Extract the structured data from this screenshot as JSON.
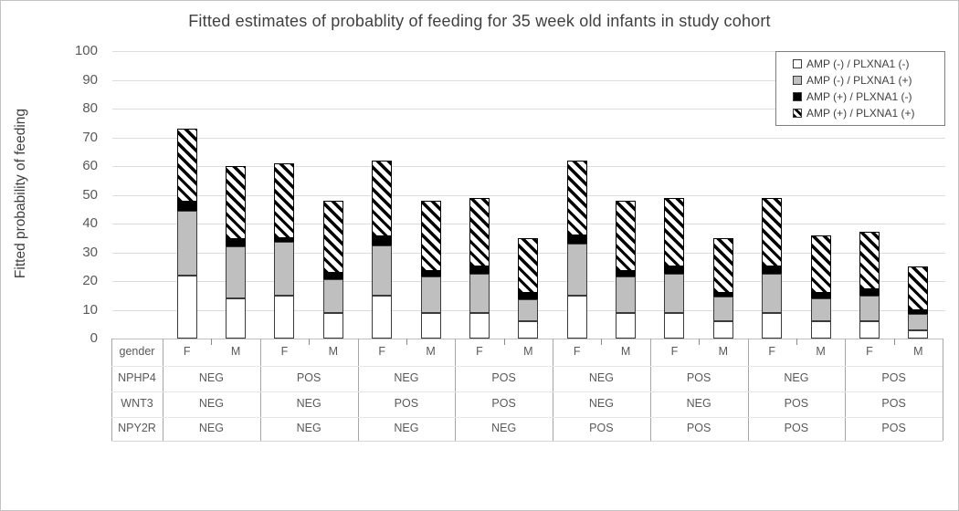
{
  "title": "Fitted estimates of probablity of feeding for 35 week old infants in study cohort",
  "y_axis": {
    "title": "Fitted probability of feeding",
    "min": 0,
    "max": 100,
    "tick_step": 10,
    "tick_labels": [
      "0",
      "10",
      "20",
      "30",
      "40",
      "50",
      "60",
      "70",
      "80",
      "90",
      "100"
    ]
  },
  "legend": {
    "items": [
      {
        "label": "AMP (-) / PLXNA1 (-)",
        "fill": "white"
      },
      {
        "label": "AMP (-) / PLXNA1 (+)",
        "fill": "gray"
      },
      {
        "label": "AMP (+) / PLXNA1 (-)",
        "fill": "black"
      },
      {
        "label": "AMP (+) / PLXNA1 (+)",
        "fill": "hatch"
      }
    ]
  },
  "table": {
    "row_labels": [
      "gender",
      "NPHP4",
      "WNT3",
      "NPY2R"
    ]
  },
  "colors": {
    "gray_fill": "#bfbfbf",
    "black_fill": "#000000",
    "bar_border": "#3a3a3a",
    "gridline": "#dcdcdc",
    "text": "#595959",
    "title_text": "#404040"
  },
  "chart_data": {
    "type": "bar",
    "stacked": true,
    "title": "Fitted estimates of probablity of feeding for 35 week old infants in study cohort",
    "xlabel": "",
    "ylabel": "Fitted probability of feeding",
    "ylim": [
      0,
      100
    ],
    "grid": true,
    "legend_position": "top-right",
    "series": [
      "AMP (-) / PLXNA1 (-)",
      "AMP (-) / PLXNA1 (+)",
      "AMP (+) / PLXNA1 (-)",
      "AMP (+) / PLXNA1 (+)"
    ],
    "category_levels": [
      "gender",
      "NPHP4",
      "WNT3",
      "NPY2R"
    ],
    "groups": [
      {
        "NPHP4": "NEG",
        "WNT3": "NEG",
        "NPY2R": "NEG",
        "bars": [
          {
            "gender": "F",
            "values": [
              22,
              22.5,
              3,
              25.5
            ],
            "total": 73
          },
          {
            "gender": "M",
            "values": [
              14,
              18,
              2.5,
              25.5
            ],
            "total": 60
          }
        ]
      },
      {
        "NPHP4": "POS",
        "WNT3": "NEG",
        "NPY2R": "NEG",
        "bars": [
          {
            "gender": "F",
            "values": [
              15,
              18.5,
              1.5,
              26
            ],
            "total": 61
          },
          {
            "gender": "M",
            "values": [
              9,
              11.5,
              2.5,
              25
            ],
            "total": 48
          }
        ]
      },
      {
        "NPHP4": "NEG",
        "WNT3": "POS",
        "NPY2R": "NEG",
        "bars": [
          {
            "gender": "F",
            "values": [
              15,
              17.5,
              3,
              26.5
            ],
            "total": 62
          },
          {
            "gender": "M",
            "values": [
              9,
              12.5,
              2,
              24.5
            ],
            "total": 48
          }
        ]
      },
      {
        "NPHP4": "POS",
        "WNT3": "POS",
        "NPY2R": "NEG",
        "bars": [
          {
            "gender": "F",
            "values": [
              9,
              13.5,
              2.5,
              24
            ],
            "total": 49
          },
          {
            "gender": "M",
            "values": [
              6,
              7.5,
              2.5,
              19
            ],
            "total": 35
          }
        ]
      },
      {
        "NPHP4": "NEG",
        "WNT3": "NEG",
        "NPY2R": "POS",
        "bars": [
          {
            "gender": "F",
            "values": [
              15,
              18,
              3,
              26
            ],
            "total": 62
          },
          {
            "gender": "M",
            "values": [
              9,
              12.5,
              2,
              24.5
            ],
            "total": 48
          }
        ]
      },
      {
        "NPHP4": "POS",
        "WNT3": "NEG",
        "NPY2R": "POS",
        "bars": [
          {
            "gender": "F",
            "values": [
              9,
              13.5,
              2.5,
              24
            ],
            "total": 49
          },
          {
            "gender": "M",
            "values": [
              6,
              8.5,
              1.5,
              19
            ],
            "total": 35
          }
        ]
      },
      {
        "NPHP4": "NEG",
        "WNT3": "POS",
        "NPY2R": "POS",
        "bars": [
          {
            "gender": "F",
            "values": [
              9,
              13.5,
              2.5,
              24
            ],
            "total": 49
          },
          {
            "gender": "M",
            "values": [
              6,
              8,
              2,
              20
            ],
            "total": 36
          }
        ]
      },
      {
        "NPHP4": "POS",
        "WNT3": "POS",
        "NPY2R": "POS",
        "bars": [
          {
            "gender": "F",
            "values": [
              6,
              9,
              2,
              20
            ],
            "total": 37
          },
          {
            "gender": "M",
            "values": [
              3,
              5.5,
              1.5,
              15
            ],
            "total": 25
          }
        ]
      }
    ]
  }
}
